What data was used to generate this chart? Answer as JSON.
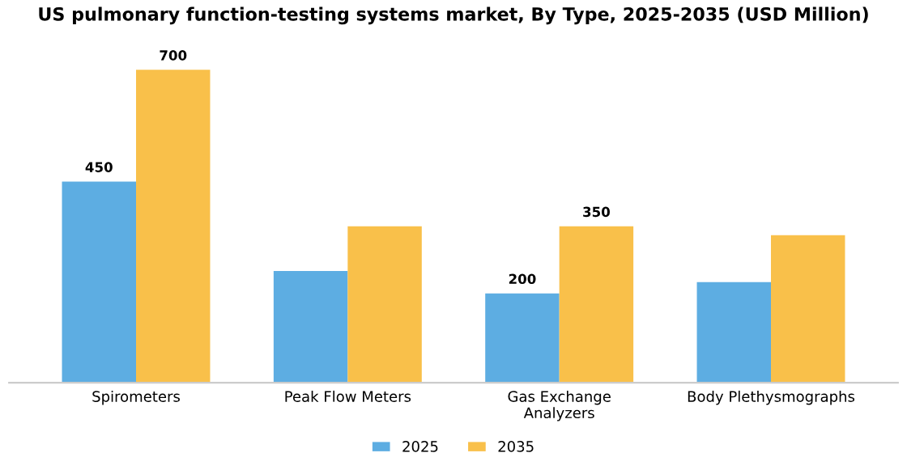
{
  "chart_data": {
    "type": "bar",
    "title": "US pulmonary function-testing systems market, By Type, 2025-2035 (USD Million)",
    "categories": [
      "Spirometers",
      "Peak Flow Meters",
      "Gas Exchange\nAnalyzers",
      "Body Plethysmographs"
    ],
    "series": [
      {
        "name": "2025",
        "color": "#5dade2",
        "values": [
          450,
          250,
          200,
          225
        ],
        "value_labels": [
          "450",
          null,
          "200",
          null
        ]
      },
      {
        "name": "2035",
        "color": "#f9c04a",
        "values": [
          700,
          350,
          350,
          330
        ],
        "value_labels": [
          "700",
          null,
          "350",
          null
        ]
      }
    ],
    "legend": "bottom",
    "grid": false
  }
}
